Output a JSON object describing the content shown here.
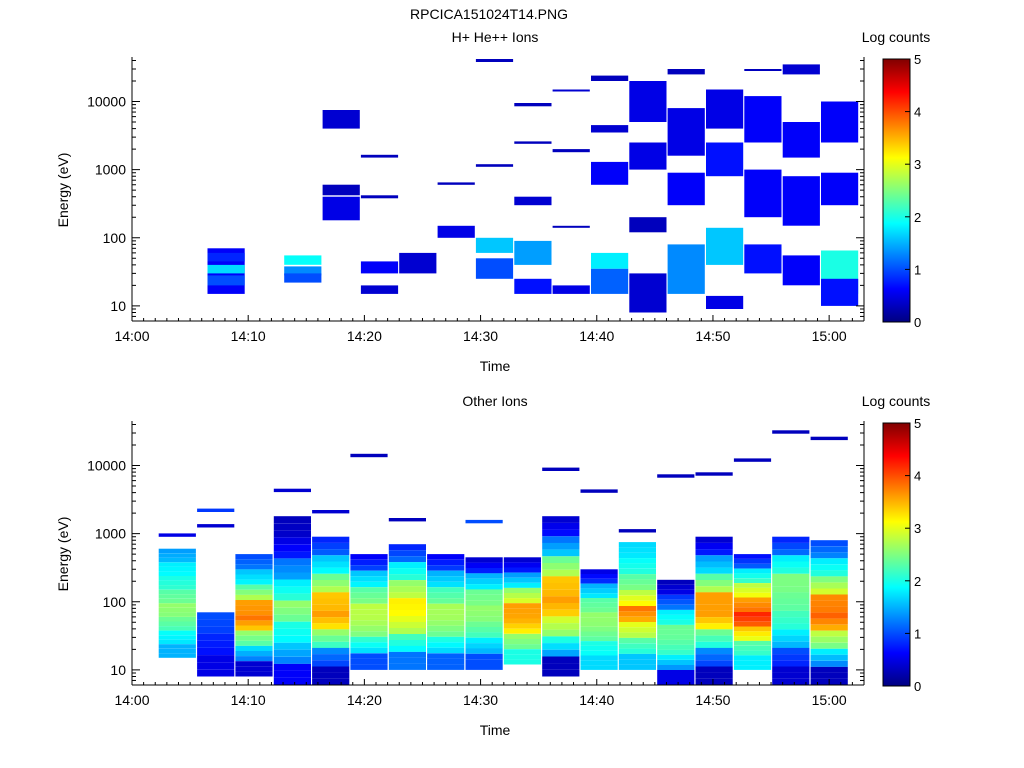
{
  "page_title": "RPCICA151024T14.PNG",
  "chart_data": [
    {
      "type": "heatmap",
      "title": "H+ He++ Ions",
      "xlabel": "Time",
      "ylabel": "Energy (eV)",
      "x_ticks": [
        "14:00",
        "14:10",
        "14:20",
        "14:30",
        "14:40",
        "14:50",
        "15:00"
      ],
      "x_range_minutes": [
        0,
        63
      ],
      "y_scale": "log",
      "y_range": [
        6,
        45000
      ],
      "y_ticks": [
        10,
        100,
        1000,
        10000
      ],
      "colorbar": {
        "label": "Log counts",
        "ticks": [
          0,
          1,
          2,
          3,
          4,
          5
        ],
        "range": [
          0,
          5
        ],
        "colormap": "jet"
      },
      "time_bins_start_min": [
        0,
        3.2,
        6.5,
        9.8,
        13.1,
        16.4,
        19.7,
        23.0,
        26.3,
        29.6,
        32.9,
        36.2,
        39.5,
        42.8,
        46.1,
        49.4,
        52.7,
        56.0,
        59.3
      ],
      "bin_width_min": 3.2,
      "cells": [
        [
          2,
          70,
          15,
          0.6
        ],
        [
          2,
          28,
          20,
          1.0
        ],
        [
          2,
          40,
          30,
          1.7
        ],
        [
          2,
          60,
          45,
          0.8
        ],
        [
          4,
          55,
          40,
          1.9
        ],
        [
          4,
          38,
          28,
          1.3
        ],
        [
          4,
          30,
          22,
          1.0
        ],
        [
          5,
          400,
          180,
          0.5
        ],
        [
          5,
          7500,
          4000,
          0.4
        ],
        [
          5,
          600,
          420,
          0.3
        ],
        [
          6,
          45,
          30,
          0.6
        ],
        [
          6,
          20,
          15,
          0.4
        ],
        [
          6,
          1650,
          1500,
          0.3
        ],
        [
          6,
          420,
          380,
          0.3
        ],
        [
          7,
          60,
          30,
          0.4
        ],
        [
          8,
          150,
          100,
          0.5
        ],
        [
          8,
          650,
          600,
          0.3
        ],
        [
          9,
          100,
          60,
          1.6
        ],
        [
          9,
          50,
          25,
          1.0
        ],
        [
          9,
          1200,
          1100,
          0.3
        ],
        [
          9,
          42000,
          38000,
          0.3
        ],
        [
          10,
          90,
          40,
          1.4
        ],
        [
          10,
          25,
          15,
          0.7
        ],
        [
          10,
          2600,
          2400,
          0.3
        ],
        [
          10,
          9500,
          8500,
          0.3
        ],
        [
          10,
          400,
          300,
          0.4
        ],
        [
          11,
          20,
          15,
          0.5
        ],
        [
          11,
          150,
          140,
          0.3
        ],
        [
          11,
          2000,
          1800,
          0.3
        ],
        [
          11,
          15000,
          14000,
          0.4
        ],
        [
          12,
          60,
          35,
          1.8
        ],
        [
          12,
          35,
          15,
          1.1
        ],
        [
          12,
          1300,
          600,
          0.6
        ],
        [
          12,
          4500,
          3500,
          0.4
        ],
        [
          12,
          24000,
          20000,
          0.3
        ],
        [
          13,
          30,
          8,
          0.4
        ],
        [
          13,
          200,
          120,
          0.3
        ],
        [
          13,
          2500,
          1000,
          0.5
        ],
        [
          13,
          20000,
          5000,
          0.5
        ],
        [
          14,
          80,
          15,
          1.3
        ],
        [
          14,
          900,
          300,
          0.6
        ],
        [
          14,
          8000,
          1600,
          0.5
        ],
        [
          14,
          30000,
          25000,
          0.3
        ],
        [
          15,
          140,
          40,
          1.6
        ],
        [
          15,
          2500,
          800,
          0.7
        ],
        [
          15,
          15000,
          4000,
          0.5
        ],
        [
          15,
          14,
          9,
          0.5
        ],
        [
          16,
          80,
          30,
          0.7
        ],
        [
          16,
          1000,
          200,
          0.6
        ],
        [
          16,
          12000,
          2500,
          0.6
        ],
        [
          16,
          30000,
          28000,
          0.3
        ],
        [
          17,
          55,
          20,
          0.6
        ],
        [
          17,
          800,
          150,
          0.6
        ],
        [
          17,
          5000,
          1500,
          0.6
        ],
        [
          17,
          35000,
          25000,
          0.4
        ],
        [
          18,
          65,
          15,
          2.0
        ],
        [
          18,
          25,
          10,
          0.7
        ],
        [
          18,
          900,
          300,
          0.6
        ],
        [
          18,
          10000,
          2500,
          0.6
        ]
      ]
    },
    {
      "type": "heatmap",
      "title": "Other Ions",
      "xlabel": "Time",
      "ylabel": "Energy (eV)",
      "x_ticks": [
        "14:00",
        "14:10",
        "14:20",
        "14:30",
        "14:40",
        "14:50",
        "15:00"
      ],
      "x_range_minutes": [
        0,
        63
      ],
      "y_scale": "log",
      "y_range": [
        6,
        45000
      ],
      "y_ticks": [
        10,
        100,
        1000,
        10000
      ],
      "colorbar": {
        "label": "Log counts",
        "ticks": [
          0,
          1,
          2,
          3,
          4,
          5
        ],
        "range": [
          0,
          5
        ],
        "colormap": "jet"
      },
      "time_bins_start_min": [
        2.3,
        5.6,
        8.9,
        12.2,
        15.5,
        18.8,
        22.1,
        25.4,
        28.7,
        32.0,
        35.3,
        38.6,
        41.9,
        45.2,
        48.5,
        51.8,
        55.1,
        58.4
      ],
      "bin_width_min": 3.2,
      "columns": [
        {
          "bin": 0,
          "top": 600,
          "bottom": 15,
          "profile": [
            1.4,
            1.8,
            2.0,
            2.3,
            2.6,
            2.4,
            1.9,
            1.5
          ],
          "extra": [
            [
              950,
              0.5
            ]
          ]
        },
        {
          "bin": 1,
          "top": 70,
          "bottom": 8,
          "profile": [
            1.0,
            0.8,
            0.5
          ],
          "extra": [
            [
              2200,
              0.9
            ],
            [
              1300,
              0.4
            ]
          ]
        },
        {
          "bin": 2,
          "top": 500,
          "bottom": 8,
          "profile": [
            1.0,
            1.6,
            2.3,
            3.6,
            3.8,
            2.6,
            1.7,
            0.4
          ]
        },
        {
          "bin": 3,
          "top": 1800,
          "bottom": 6,
          "profile": [
            0.3,
            0.5,
            1.2,
            1.8,
            2.6,
            2.0,
            1.6,
            0.6
          ],
          "extra": [
            [
              4300,
              0.4
            ]
          ]
        },
        {
          "bin": 4,
          "top": 900,
          "bottom": 6,
          "profile": [
            0.8,
            1.6,
            2.4,
            3.4,
            3.6,
            2.6,
            1.3,
            0.3
          ],
          "extra": [
            [
              2100,
              0.4
            ]
          ]
        },
        {
          "bin": 5,
          "top": 500,
          "bottom": 10,
          "profile": [
            0.6,
            1.6,
            2.3,
            2.8,
            2.7,
            2.1,
            1.0
          ],
          "extra": [
            [
              14000,
              0.3
            ]
          ]
        },
        {
          "bin": 6,
          "top": 700,
          "bottom": 10,
          "profile": [
            0.8,
            1.8,
            2.6,
            3.2,
            3.0,
            2.2,
            1.2
          ],
          "extra": [
            [
              1600,
              0.3
            ]
          ]
        },
        {
          "bin": 7,
          "top": 500,
          "bottom": 10,
          "profile": [
            0.6,
            1.5,
            2.2,
            2.7,
            2.6,
            2.0,
            1.1
          ]
        },
        {
          "bin": 8,
          "top": 450,
          "bottom": 10,
          "profile": [
            0.4,
            1.5,
            2.4,
            2.6,
            2.4,
            1.8,
            1.0
          ],
          "extra": [
            [
              1500,
              1.0
            ]
          ]
        },
        {
          "bin": 9,
          "top": 450,
          "bottom": 12,
          "profile": [
            0.4,
            1.4,
            2.6,
            3.6,
            3.5,
            2.6,
            2.0
          ]
        },
        {
          "bin": 10,
          "top": 1800,
          "bottom": 8,
          "profile": [
            0.4,
            1.2,
            2.4,
            3.4,
            3.6,
            2.9,
            2.0,
            0.3
          ],
          "extra": [
            [
              8800,
              0.3
            ]
          ]
        },
        {
          "bin": 11,
          "top": 300,
          "bottom": 10,
          "profile": [
            0.5,
            1.5,
            2.3,
            2.6,
            2.5,
            2.0,
            1.7
          ],
          "extra": [
            [
              4200,
              0.3
            ]
          ]
        },
        {
          "bin": 12,
          "top": 750,
          "bottom": 10,
          "profile": [
            1.7,
            1.9,
            2.3,
            2.8,
            3.8,
            3.0,
            2.3,
            1.6
          ],
          "extra": [
            [
              1100,
              0.3
            ]
          ]
        },
        {
          "bin": 13,
          "top": 210,
          "bottom": 6,
          "profile": [
            0.3,
            0.9,
            1.8,
            2.4,
            2.3,
            1.8,
            0.5
          ],
          "extra": [
            [
              7000,
              0.3
            ]
          ]
        },
        {
          "bin": 14,
          "top": 900,
          "bottom": 6,
          "profile": [
            0.4,
            1.4,
            2.3,
            3.6,
            3.6,
            2.4,
            1.3,
            0.3
          ],
          "extra": [
            [
              7500,
              0.3
            ]
          ]
        },
        {
          "bin": 15,
          "top": 500,
          "bottom": 10,
          "profile": [
            0.7,
            1.8,
            2.8,
            3.6,
            4.2,
            3.4,
            2.3,
            1.8
          ],
          "extra": [
            [
              12000,
              0.3
            ]
          ]
        },
        {
          "bin": 16,
          "top": 900,
          "bottom": 6,
          "profile": [
            0.8,
            1.8,
            2.5,
            2.4,
            2.2,
            1.8,
            1.0,
            0.4
          ],
          "extra": [
            [
              31000,
              0.3
            ]
          ]
        },
        {
          "bin": 17,
          "top": 800,
          "bottom": 6,
          "profile": [
            1.0,
            1.8,
            2.5,
            3.7,
            3.9,
            2.8,
            1.8,
            0.3
          ],
          "extra": [
            [
              25000,
              0.3
            ]
          ]
        }
      ]
    }
  ]
}
